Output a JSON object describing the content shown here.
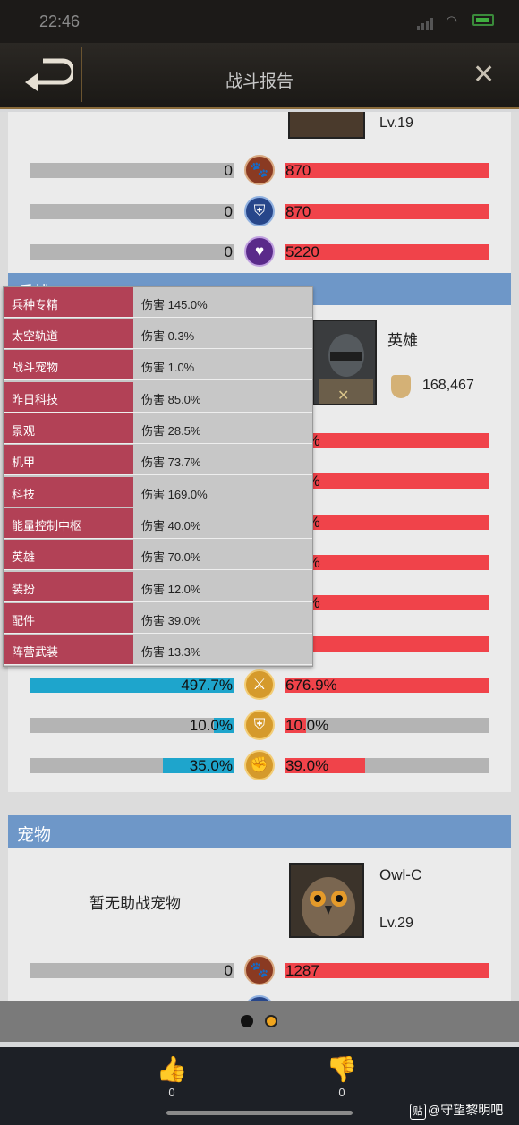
{
  "status": {
    "time": "22:46"
  },
  "header": {
    "title": "战斗报告"
  },
  "top_enemy": {
    "level": "Lv.19"
  },
  "top_bars": [
    {
      "left": "0",
      "right": "870",
      "icon": "paw-icon"
    },
    {
      "left": "0",
      "right": "870",
      "icon": "shield-icon"
    },
    {
      "left": "0",
      "right": "5220",
      "icon": "heart-pulse-icon"
    }
  ],
  "hero_section": {
    "title": "兵排",
    "hero_label": "英雄",
    "power": "168,467",
    "partial_right_values": [
      "9.3%",
      "3.6%",
      "0.5%",
      "6.2%",
      "0.1%",
      ""
    ]
  },
  "tooltip": {
    "rows": [
      {
        "label": "兵种专精",
        "value": "伤害  145.0%"
      },
      {
        "label": "太空轨道",
        "value": "伤害  0.3%"
      },
      {
        "label": "战斗宠物",
        "value": "伤害  1.0%"
      },
      {
        "label": "昨日科技",
        "value": "伤害  85.0%"
      },
      {
        "label": "景观",
        "value": "伤害  28.5%"
      },
      {
        "label": "机甲",
        "value": "伤害  73.7%"
      },
      {
        "label": "科技",
        "value": "伤害  169.0%"
      },
      {
        "label": "能量控制中枢",
        "value": "伤害  40.0%"
      },
      {
        "label": "英雄",
        "value": "伤害  70.0%"
      },
      {
        "label": "装扮",
        "value": "伤害  12.0%"
      },
      {
        "label": "配件",
        "value": "伤害  39.0%"
      },
      {
        "label": "阵营武装",
        "value": "伤害  13.3%"
      }
    ]
  },
  "hero_bars": [
    {
      "left": "497.7%",
      "right": "676.9%",
      "left_fill": 1.0,
      "right_fill": 1.0,
      "icon": "crossed-swords-icon"
    },
    {
      "left": "10.0%",
      "right": "10.0%",
      "left_fill": 0.1,
      "right_fill": 0.1,
      "icon": "shield-icon"
    },
    {
      "left": "35.0%",
      "right": "39.0%",
      "left_fill": 0.35,
      "right_fill": 0.39,
      "icon": "fist-icon"
    }
  ],
  "pet_section": {
    "title": "宠物",
    "no_pet": "暂无助战宠物",
    "pet_name": "Owl-C",
    "pet_level": "Lv.29",
    "bar": {
      "left": "0",
      "right": "1287",
      "icon": "paw-icon"
    }
  },
  "footer": {
    "like_count": "0",
    "dislike_count": "0"
  },
  "watermark": {
    "logo": "贴",
    "text": "@守望黎明吧"
  },
  "colors": {
    "accent_blue": "#6e97c8",
    "enemy_red": "#f0434a",
    "ally_cyan": "#1ea5cc",
    "tooltip_red": "#b24156"
  }
}
